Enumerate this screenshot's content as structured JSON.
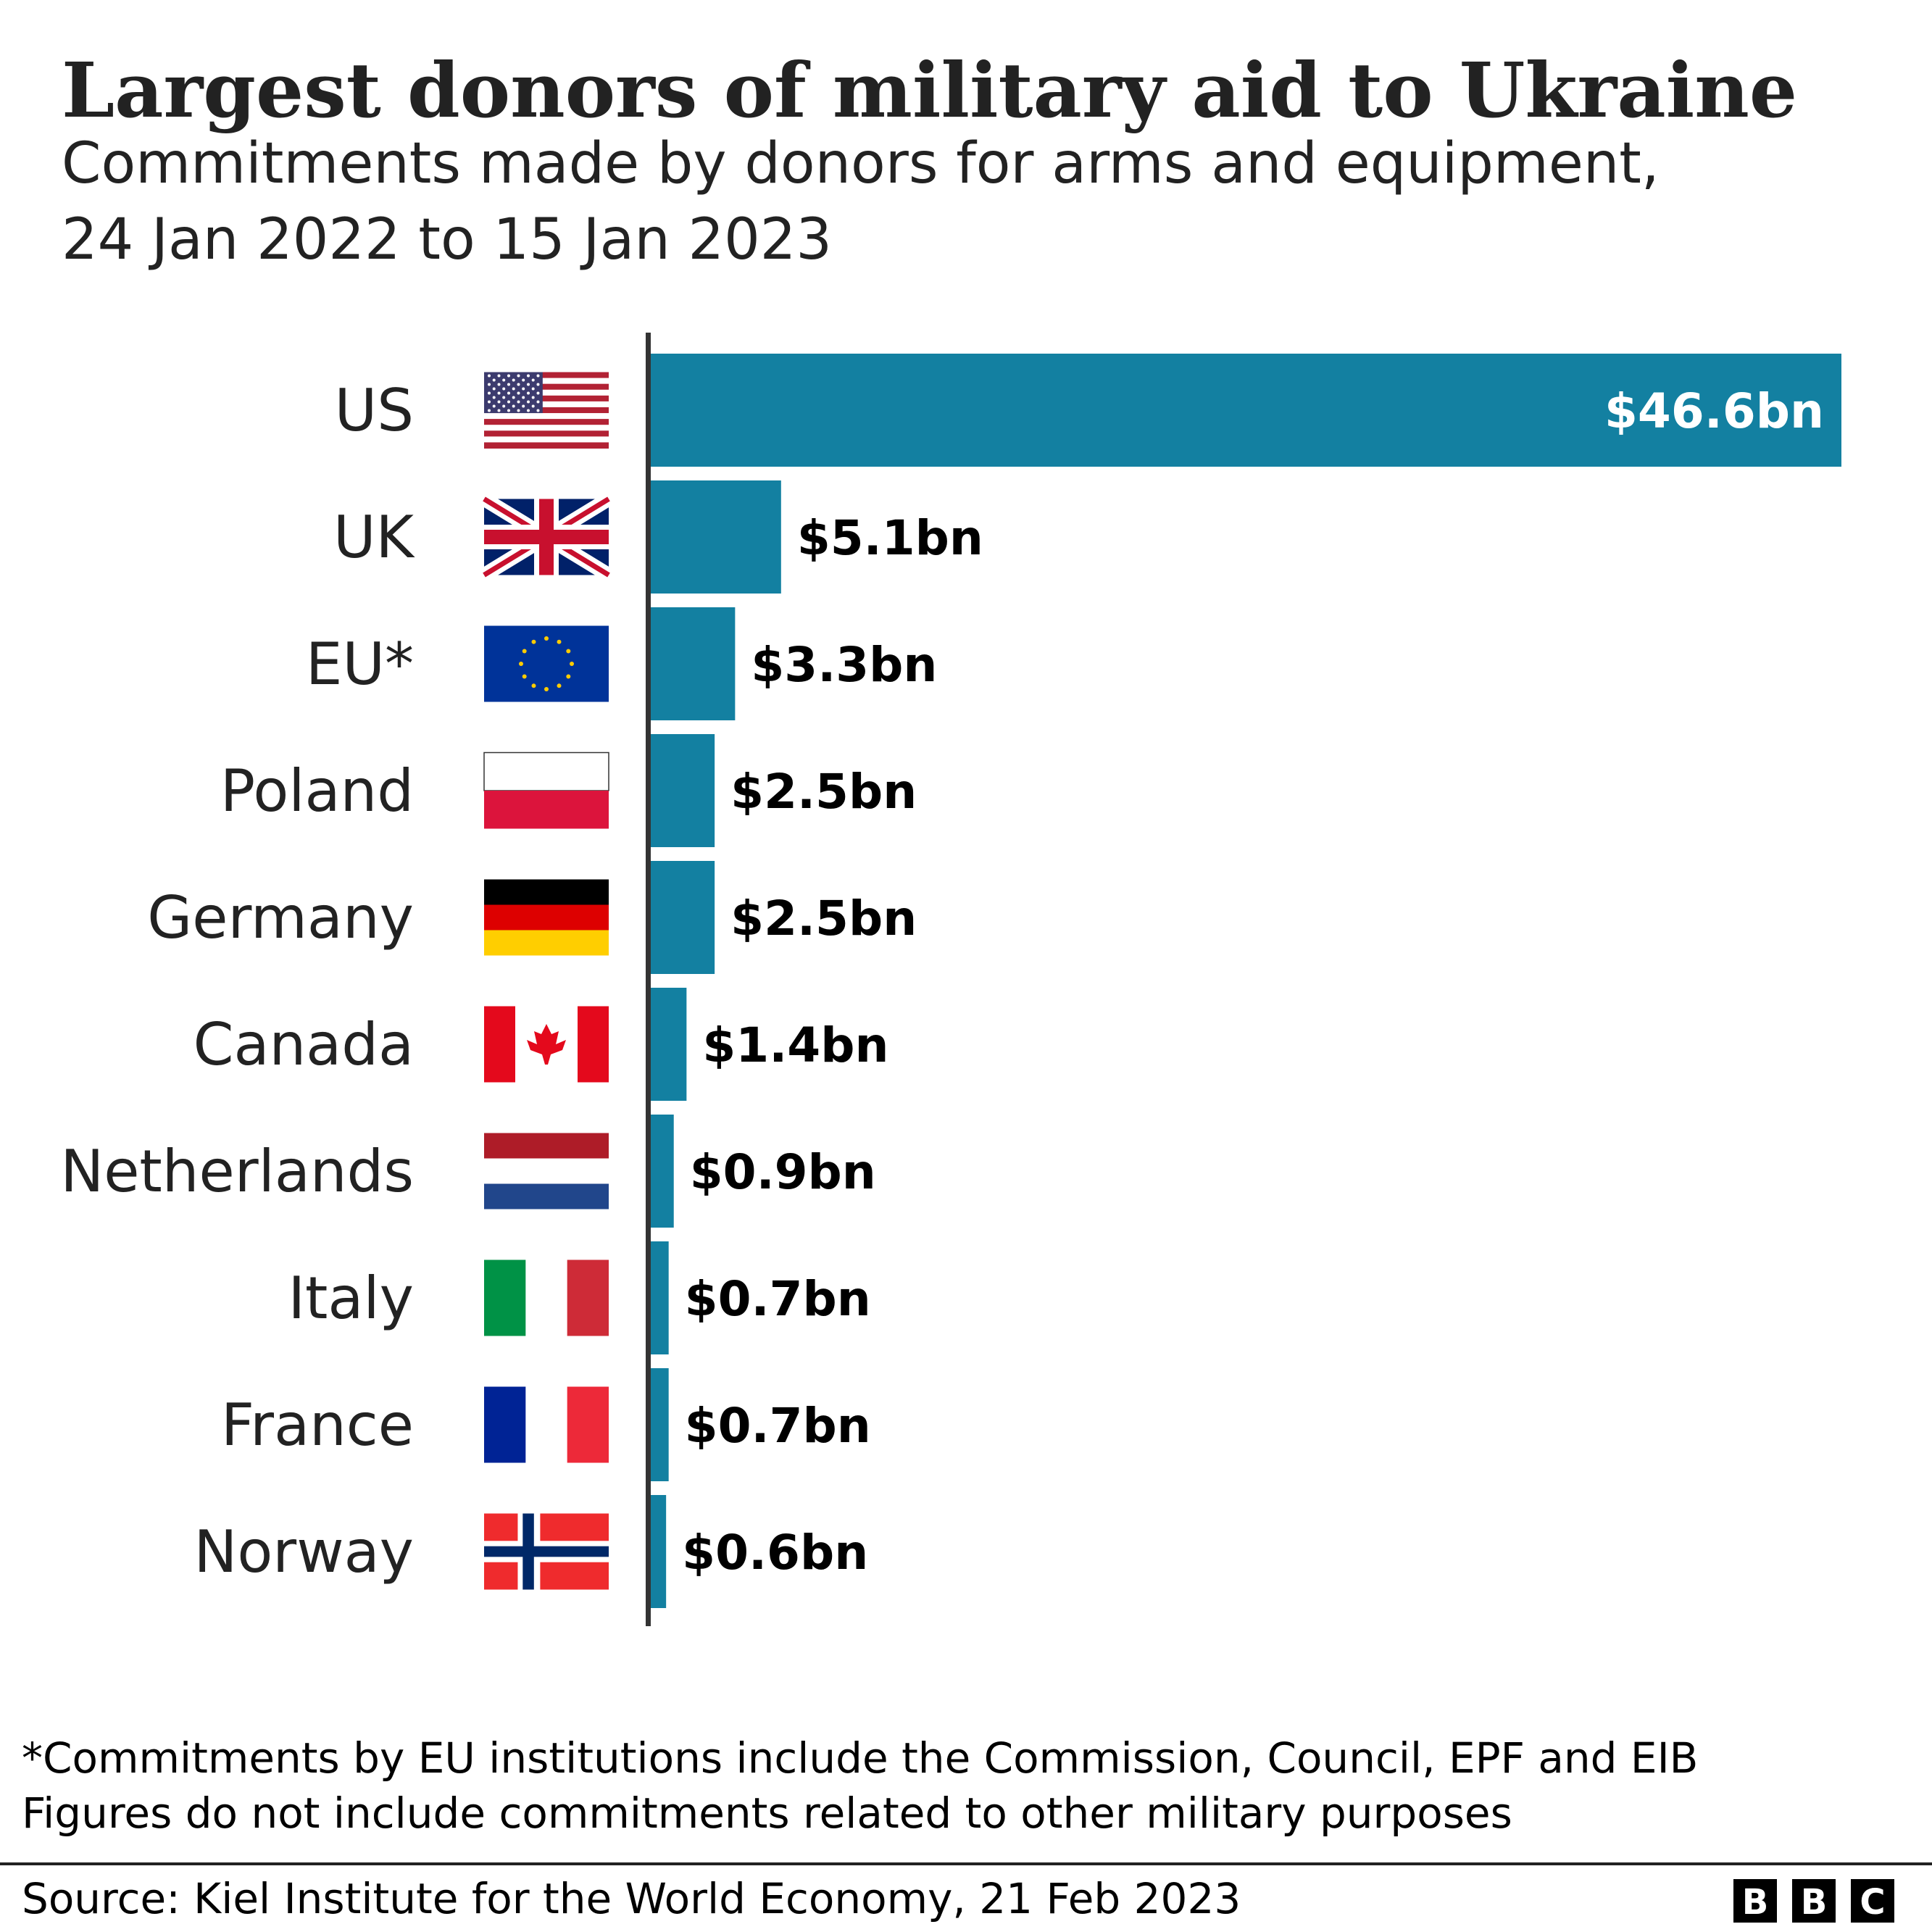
{
  "chart_data": {
    "type": "bar",
    "orientation": "horizontal",
    "title": "Largest donors of military aid to Ukraine",
    "subtitle": [
      "Commitments made by donors for arms and equipment,",
      "24 Jan 2022 to 15 Jan 2023"
    ],
    "categories": [
      "US",
      "UK",
      "EU*",
      "Poland",
      "Germany",
      "Canada",
      "Netherlands",
      "Italy",
      "France",
      "Norway"
    ],
    "flags": [
      "us-flag",
      "uk-flag",
      "eu-flag",
      "poland-flag",
      "germany-flag",
      "canada-flag",
      "netherlands-flag",
      "italy-flag",
      "france-flag",
      "norway-flag"
    ],
    "values": [
      46.6,
      5.1,
      3.3,
      2.5,
      2.5,
      1.4,
      0.9,
      0.7,
      0.7,
      0.6
    ],
    "value_labels": [
      "$46.6bn",
      "$5.1bn",
      "$3.3bn",
      "$2.5bn",
      "$2.5bn",
      "$1.4bn",
      "$0.9bn",
      "$0.7bn",
      "$0.7bn",
      "$0.6bn"
    ],
    "unit": "$bn",
    "xlim": [
      0,
      46.6
    ],
    "grid": false,
    "bar_color": "#1380a1",
    "footnotes": [
      "*Commitments by EU institutions include the Commission, Council, EPF and EIB",
      "Figures do not include commitments related to other military purposes"
    ],
    "source": "Source: Kiel Institute for the World Economy, 21 Feb 2023",
    "logo": [
      "B",
      "B",
      "C"
    ]
  }
}
